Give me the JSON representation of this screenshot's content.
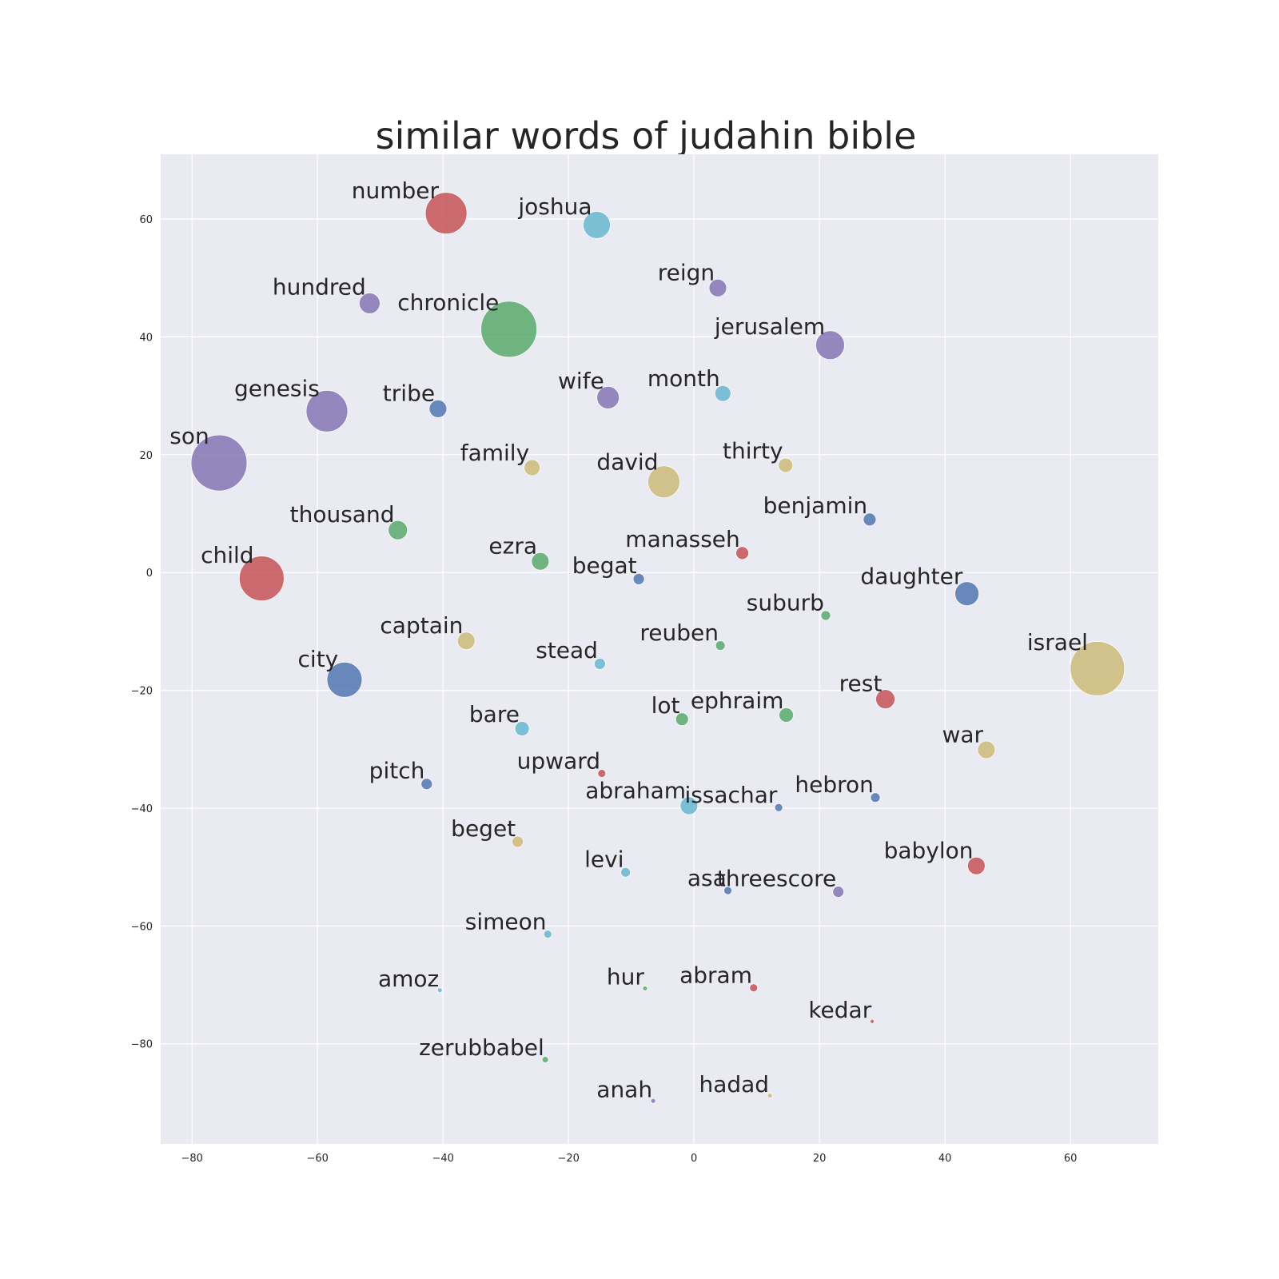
{
  "chart_data": {
    "type": "scatter",
    "title": "similar words of judahin bible",
    "xlabel": "",
    "ylabel": "",
    "xlim": [
      -85,
      74
    ],
    "ylim": [
      -97,
      71
    ],
    "xticks": [
      -80,
      -60,
      -40,
      -20,
      0,
      20,
      40,
      60
    ],
    "yticks": [
      60,
      40,
      20,
      0,
      -20,
      -40,
      -60,
      -80
    ],
    "grid": true,
    "palette": {
      "purple": "#8172b2",
      "blue": "#4c72b0",
      "green": "#55a868",
      "red": "#c44e52",
      "gold": "#ccb974",
      "cyan": "#64b5cd"
    },
    "points": [
      {
        "word": "number",
        "x": -39.5,
        "y": 61,
        "size": 26,
        "color": "red"
      },
      {
        "word": "joshua",
        "x": -15.5,
        "y": 59,
        "size": 17,
        "color": "cyan"
      },
      {
        "word": "reign",
        "x": 3.8,
        "y": 48.3,
        "size": 11,
        "color": "purple"
      },
      {
        "word": "hundred",
        "x": -51.7,
        "y": 45.7,
        "size": 13,
        "color": "purple"
      },
      {
        "word": "chronicle",
        "x": -29.5,
        "y": 41.3,
        "size": 35,
        "color": "green"
      },
      {
        "word": "jerusalem",
        "x": 21.7,
        "y": 38.6,
        "size": 18,
        "color": "purple"
      },
      {
        "word": "month",
        "x": 4.6,
        "y": 30.4,
        "size": 10,
        "color": "cyan"
      },
      {
        "word": "wife",
        "x": -13.7,
        "y": 29.7,
        "size": 14,
        "color": "purple"
      },
      {
        "word": "genesis",
        "x": -58.5,
        "y": 27.4,
        "size": 26,
        "color": "purple"
      },
      {
        "word": "tribe",
        "x": -40.8,
        "y": 27.8,
        "size": 11,
        "color": "blue"
      },
      {
        "word": "son",
        "x": -75.7,
        "y": 18.6,
        "size": 35,
        "color": "purple"
      },
      {
        "word": "family",
        "x": -25.8,
        "y": 17.8,
        "size": 10,
        "color": "gold"
      },
      {
        "word": "david",
        "x": -4.8,
        "y": 15.4,
        "size": 20,
        "color": "gold"
      },
      {
        "word": "thirty",
        "x": 14.6,
        "y": 18.2,
        "size": 9,
        "color": "gold"
      },
      {
        "word": "benjamin",
        "x": 28,
        "y": 9,
        "size": 8,
        "color": "blue"
      },
      {
        "word": "thousand",
        "x": -47.2,
        "y": 7.2,
        "size": 12,
        "color": "green"
      },
      {
        "word": "manasseh",
        "x": 7.7,
        "y": 3.3,
        "size": 8,
        "color": "red"
      },
      {
        "word": "ezra",
        "x": -24.5,
        "y": 1.9,
        "size": 11,
        "color": "green"
      },
      {
        "word": "begat",
        "x": -8.8,
        "y": -1.1,
        "size": 7,
        "color": "blue"
      },
      {
        "word": "child",
        "x": -68.9,
        "y": -1,
        "size": 28,
        "color": "red"
      },
      {
        "word": "daughter",
        "x": 43.5,
        "y": -3.6,
        "size": 15,
        "color": "blue"
      },
      {
        "word": "suburb",
        "x": 21,
        "y": -7.3,
        "size": 6,
        "color": "green"
      },
      {
        "word": "reuben",
        "x": 4.2,
        "y": -12.4,
        "size": 6,
        "color": "green"
      },
      {
        "word": "captain",
        "x": -36.3,
        "y": -11.6,
        "size": 11,
        "color": "gold"
      },
      {
        "word": "stead",
        "x": -15,
        "y": -15.5,
        "size": 7,
        "color": "cyan"
      },
      {
        "word": "israel",
        "x": 64.3,
        "y": -16.3,
        "size": 34,
        "color": "gold"
      },
      {
        "word": "city",
        "x": -55.7,
        "y": -18.2,
        "size": 22,
        "color": "blue"
      },
      {
        "word": "rest",
        "x": 30.5,
        "y": -21.5,
        "size": 12,
        "color": "red"
      },
      {
        "word": "ephraim",
        "x": 14.7,
        "y": -24.2,
        "size": 9,
        "color": "green"
      },
      {
        "word": "lot",
        "x": -1.9,
        "y": -24.9,
        "size": 8,
        "color": "green"
      },
      {
        "word": "bare",
        "x": -27.4,
        "y": -26.5,
        "size": 9,
        "color": "cyan"
      },
      {
        "word": "war",
        "x": 46.6,
        "y": -30.1,
        "size": 11,
        "color": "gold"
      },
      {
        "word": "upward",
        "x": -14.7,
        "y": -34.1,
        "size": 5,
        "color": "red"
      },
      {
        "word": "pitch",
        "x": -42.6,
        "y": -35.9,
        "size": 7,
        "color": "blue"
      },
      {
        "word": "hebron",
        "x": 28.9,
        "y": -38.2,
        "size": 6,
        "color": "blue"
      },
      {
        "word": "issachar",
        "x": 13.5,
        "y": -39.9,
        "size": 5,
        "color": "blue"
      },
      {
        "word": "abraham",
        "x": -0.8,
        "y": -39.6,
        "size": 11,
        "color": "cyan"
      },
      {
        "word": "beget",
        "x": -28.1,
        "y": -45.7,
        "size": 7,
        "color": "gold"
      },
      {
        "word": "babylon",
        "x": 45,
        "y": -49.8,
        "size": 11,
        "color": "red"
      },
      {
        "word": "levi",
        "x": -10.9,
        "y": -50.9,
        "size": 6,
        "color": "cyan"
      },
      {
        "word": "asa",
        "x": 5.4,
        "y": -54,
        "size": 5,
        "color": "blue"
      },
      {
        "word": "threescore",
        "x": 23,
        "y": -54.2,
        "size": 7,
        "color": "purple"
      },
      {
        "word": "simeon",
        "x": -23.3,
        "y": -61.4,
        "size": 5,
        "color": "cyan"
      },
      {
        "word": "amoz",
        "x": -40.5,
        "y": -70.9,
        "size": 3,
        "color": "cyan"
      },
      {
        "word": "hur",
        "x": -7.8,
        "y": -70.6,
        "size": 3,
        "color": "green"
      },
      {
        "word": "abram",
        "x": 9.5,
        "y": -70.5,
        "size": 5,
        "color": "red"
      },
      {
        "word": "kedar",
        "x": 28.4,
        "y": -76.2,
        "size": 2.5,
        "color": "red"
      },
      {
        "word": "zerubbabel",
        "x": -23.7,
        "y": -82.7,
        "size": 4,
        "color": "green"
      },
      {
        "word": "hadad",
        "x": 12.1,
        "y": -88.8,
        "size": 3,
        "color": "gold"
      },
      {
        "word": "anah",
        "x": -6.5,
        "y": -89.7,
        "size": 3,
        "color": "purple"
      }
    ]
  }
}
